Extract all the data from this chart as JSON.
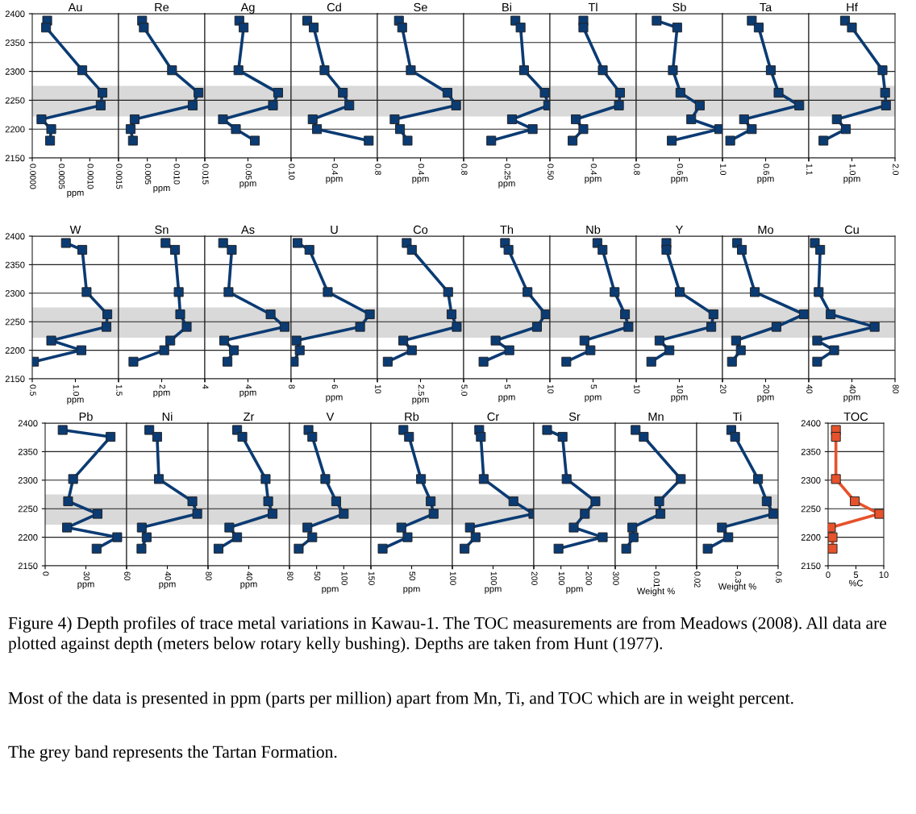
{
  "chart_data": [
    {
      "type": "line",
      "title": "Au",
      "xlabel": "ppm",
      "xlim": [
        0,
        0.0015
      ],
      "xticks": [
        {
          "value": 0,
          "label": "0.0000"
        },
        0.0005,
        {
          "value": 0.001,
          "label": "0.0010"
        },
        {
          "value": 0.0015,
          "label": "0.0015"
        }
      ],
      "ylim": [
        2150,
        2400
      ],
      "yticks": [
        2150,
        2200,
        2250,
        2300,
        2350,
        2400
      ],
      "grid": "y",
      "marker": "square",
      "bands": [
        {
          "axis": "y",
          "from": 2222,
          "to": 2275,
          "color": "#d9d9d9"
        }
      ],
      "series": [
        {
          "color": "#0b3b73",
          "x": [
            0.00026,
            0.00024,
            0.00087,
            0.00122,
            0.00119,
            0.00016,
            0.00033,
            0.00031
          ],
          "values": [
            2388,
            2376,
            2302,
            2263,
            2241,
            2217,
            2200,
            2180
          ]
        }
      ]
    },
    {
      "type": "line",
      "title": "Re",
      "xlabel": "ppm",
      "xlim": [
        0,
        0.015
      ],
      "xticks": [
        {
          "value": 0,
          "label": null
        },
        0.005,
        {
          "value": 0.01,
          "label": "0.010"
        },
        0.015
      ],
      "ylim": [
        2150,
        2400
      ],
      "yticks": [
        2150,
        2200,
        2250,
        2300,
        2350,
        2400
      ],
      "grid": "y",
      "marker": "square",
      "tick_labels": "x",
      "bands": [
        {
          "axis": "y",
          "from": 2222,
          "to": 2275,
          "color": "#d9d9d9"
        }
      ],
      "series": [
        {
          "color": "#0b3b73",
          "x": [
            0.0041,
            0.0044,
            0.0093,
            0.0139,
            0.0129,
            0.0028,
            0.0021,
            0.0025
          ],
          "values": [
            2388,
            2376,
            2302,
            2263,
            2241,
            2217,
            2200,
            2180
          ]
        }
      ]
    },
    {
      "type": "line",
      "title": "Ag",
      "xlabel": "ppm",
      "xlim": [
        0,
        0.1
      ],
      "xticks": [
        {
          "value": 0,
          "label": null
        },
        0.05,
        {
          "value": 0.1,
          "label": "0.10"
        }
      ],
      "ylim": [
        2150,
        2400
      ],
      "yticks": [
        2150,
        2200,
        2250,
        2300,
        2350,
        2400
      ],
      "grid": "y",
      "marker": "square",
      "tick_labels": "x",
      "bands": [
        {
          "axis": "y",
          "from": 2222,
          "to": 2275,
          "color": "#d9d9d9"
        }
      ],
      "series": [
        {
          "color": "#0b3b73",
          "x": [
            0.04,
            0.045,
            0.039,
            0.085,
            0.079,
            0.021,
            0.036,
            0.058
          ],
          "values": [
            2388,
            2376,
            2302,
            2263,
            2241,
            2217,
            2200,
            2180
          ]
        }
      ]
    },
    {
      "type": "line",
      "title": "Cd",
      "xlabel": "ppm",
      "xlim": [
        0,
        0.8
      ],
      "xticks": [
        {
          "value": 0,
          "label": null
        },
        0.4,
        0.8
      ],
      "ylim": [
        2150,
        2400
      ],
      "yticks": [
        2150,
        2200,
        2250,
        2300,
        2350,
        2400
      ],
      "grid": "y",
      "marker": "square",
      "tick_labels": "x",
      "bands": [
        {
          "axis": "y",
          "from": 2222,
          "to": 2275,
          "color": "#d9d9d9"
        }
      ],
      "series": [
        {
          "color": "#0b3b73",
          "x": [
            0.15,
            0.21,
            0.31,
            0.48,
            0.54,
            0.2,
            0.24,
            0.72
          ],
          "values": [
            2388,
            2376,
            2302,
            2263,
            2241,
            2217,
            2200,
            2180
          ]
        }
      ]
    },
    {
      "type": "line",
      "title": "Se",
      "xlabel": "ppm",
      "xlim": [
        0,
        0.8
      ],
      "xticks": [
        {
          "value": 0,
          "label": null
        },
        0.4,
        0.8
      ],
      "ylim": [
        2150,
        2400
      ],
      "yticks": [
        2150,
        2200,
        2250,
        2300,
        2350,
        2400
      ],
      "grid": "y",
      "marker": "square",
      "tick_labels": "x",
      "bands": [
        {
          "axis": "y",
          "from": 2222,
          "to": 2275,
          "color": "#d9d9d9"
        }
      ],
      "series": [
        {
          "color": "#0b3b73",
          "x": [
            0.2,
            0.23,
            0.31,
            0.65,
            0.73,
            0.16,
            0.21,
            0.28
          ],
          "values": [
            2388,
            2376,
            2302,
            2263,
            2241,
            2217,
            2200,
            2180
          ]
        }
      ]
    },
    {
      "type": "line",
      "title": "Bi",
      "xlabel": "ppm",
      "xlim": [
        0,
        0.5
      ],
      "xticks": [
        {
          "value": 0,
          "label": null
        },
        0.25,
        {
          "value": 0.5,
          "label": "0.50"
        }
      ],
      "ylim": [
        2150,
        2400
      ],
      "yticks": [
        2150,
        2200,
        2250,
        2300,
        2350,
        2400
      ],
      "grid": "y",
      "marker": "square",
      "tick_labels": "x",
      "bands": [
        {
          "axis": "y",
          "from": 2222,
          "to": 2275,
          "color": "#d9d9d9"
        }
      ],
      "series": [
        {
          "color": "#0b3b73",
          "x": [
            0.3,
            0.33,
            0.35,
            0.47,
            0.49,
            0.28,
            0.4,
            0.16
          ],
          "values": [
            2388,
            2376,
            2302,
            2263,
            2241,
            2217,
            2200,
            2180
          ]
        }
      ]
    },
    {
      "type": "line",
      "title": "Tl",
      "xlabel": "ppm",
      "xlim": [
        0,
        0.8
      ],
      "xticks": [
        {
          "value": 0,
          "label": null
        },
        0.4,
        0.8
      ],
      "ylim": [
        2150,
        2400
      ],
      "yticks": [
        2150,
        2200,
        2250,
        2300,
        2350,
        2400
      ],
      "grid": "y",
      "marker": "square",
      "tick_labels": "x",
      "bands": [
        {
          "axis": "y",
          "from": 2222,
          "to": 2275,
          "color": "#d9d9d9"
        }
      ],
      "series": [
        {
          "color": "#0b3b73",
          "x": [
            0.31,
            0.31,
            0.49,
            0.65,
            0.64,
            0.24,
            0.31,
            0.21
          ],
          "values": [
            2388,
            2376,
            2302,
            2263,
            2241,
            2217,
            2200,
            2180
          ]
        }
      ]
    },
    {
      "type": "line",
      "title": "Sb",
      "xlabel": "ppm",
      "xlim": [
        0.2,
        1.0
      ],
      "xticks": [
        {
          "value": 0.2,
          "label": null
        },
        0.6,
        {
          "value": 1.0,
          "label": "1.0"
        }
      ],
      "ylim": [
        2150,
        2400
      ],
      "yticks": [
        2150,
        2200,
        2250,
        2300,
        2350,
        2400
      ],
      "grid": "y",
      "marker": "square",
      "tick_labels": "x",
      "bands": [
        {
          "axis": "y",
          "from": 2222,
          "to": 2275,
          "color": "#d9d9d9"
        }
      ],
      "series": [
        {
          "color": "#0b3b73",
          "x": [
            0.39,
            0.58,
            0.54,
            0.61,
            0.79,
            0.71,
            0.97,
            0.53
          ],
          "values": [
            2388,
            2376,
            2302,
            2263,
            2241,
            2217,
            2200,
            2180
          ]
        }
      ]
    },
    {
      "type": "line",
      "title": "Ta",
      "xlabel": "ppm",
      "xlim": [
        0.1,
        1.1
      ],
      "xticks": [
        {
          "value": 0.1,
          "label": null
        },
        0.6,
        1.1
      ],
      "ylim": [
        2150,
        2400
      ],
      "yticks": [
        2150,
        2200,
        2250,
        2300,
        2350,
        2400
      ],
      "grid": "y",
      "marker": "square",
      "tick_labels": "x",
      "bands": [
        {
          "axis": "y",
          "from": 2222,
          "to": 2275,
          "color": "#d9d9d9"
        }
      ],
      "series": [
        {
          "color": "#0b3b73",
          "x": [
            0.44,
            0.52,
            0.66,
            0.75,
            0.99,
            0.35,
            0.44,
            0.19
          ],
          "values": [
            2388,
            2376,
            2302,
            2263,
            2241,
            2217,
            2200,
            2180
          ]
        }
      ]
    },
    {
      "type": "line",
      "title": "Hf",
      "xlabel": "ppm",
      "xlim": [
        0,
        2.0
      ],
      "xticks": [
        {
          "value": 0,
          "label": null
        },
        {
          "value": 1.0,
          "label": "1.0"
        },
        {
          "value": 2.0,
          "label": "2.0"
        }
      ],
      "ylim": [
        2150,
        2400
      ],
      "yticks": [
        2150,
        2200,
        2250,
        2300,
        2350,
        2400
      ],
      "grid": "y",
      "marker": "square",
      "tick_labels": "x",
      "bands": [
        {
          "axis": "y",
          "from": 2222,
          "to": 2275,
          "color": "#d9d9d9"
        }
      ],
      "series": [
        {
          "color": "#0b3b73",
          "x": [
            0.84,
            1.0,
            1.71,
            1.77,
            1.79,
            0.65,
            0.86,
            0.34
          ],
          "values": [
            2388,
            2376,
            2302,
            2263,
            2241,
            2217,
            2200,
            2180
          ]
        }
      ]
    },
    {
      "type": "line",
      "title": "W",
      "xlabel": "ppm",
      "xlim": [
        0.5,
        1.5
      ],
      "xticks": [
        0.5,
        {
          "value": 1.0,
          "label": "1.0"
        },
        1.5
      ],
      "ylim": [
        2150,
        2400
      ],
      "yticks": [
        2150,
        2200,
        2250,
        2300,
        2350,
        2400
      ],
      "grid": "y",
      "marker": "square",
      "bands": [
        {
          "axis": "y",
          "from": 2222,
          "to": 2275,
          "color": "#d9d9d9"
        }
      ],
      "series": [
        {
          "color": "#0b3b73",
          "x": [
            0.89,
            1.08,
            1.13,
            1.37,
            1.36,
            0.72,
            1.07,
            0.52
          ],
          "values": [
            2388,
            2376,
            2302,
            2263,
            2241,
            2217,
            2200,
            2180
          ]
        }
      ]
    },
    {
      "type": "line",
      "title": "Sn",
      "xlabel": "ppm",
      "xlim": [
        0,
        4
      ],
      "xticks": [
        {
          "value": 0,
          "label": null
        },
        2,
        4
      ],
      "ylim": [
        2150,
        2400
      ],
      "yticks": [
        2150,
        2200,
        2250,
        2300,
        2350,
        2400
      ],
      "grid": "y",
      "marker": "square",
      "tick_labels": "x",
      "bands": [
        {
          "axis": "y",
          "from": 2222,
          "to": 2275,
          "color": "#d9d9d9"
        }
      ],
      "series": [
        {
          "color": "#0b3b73",
          "x": [
            2.18,
            2.62,
            2.79,
            2.86,
            3.16,
            2.4,
            2.12,
            0.69
          ],
          "values": [
            2388,
            2376,
            2302,
            2263,
            2241,
            2217,
            2200,
            2180
          ]
        }
      ]
    },
    {
      "type": "line",
      "title": "As",
      "xlabel": "ppm",
      "xlim": [
        0,
        8
      ],
      "xticks": [
        {
          "value": 0,
          "label": null
        },
        4,
        8
      ],
      "ylim": [
        2150,
        2400
      ],
      "yticks": [
        2150,
        2200,
        2250,
        2300,
        2350,
        2400
      ],
      "grid": "y",
      "marker": "square",
      "tick_labels": "x",
      "bands": [
        {
          "axis": "y",
          "from": 2222,
          "to": 2275,
          "color": "#d9d9d9"
        }
      ],
      "series": [
        {
          "color": "#0b3b73",
          "x": [
            1.7,
            2.5,
            2.2,
            6.1,
            7.4,
            1.8,
            2.7,
            2.1
          ],
          "values": [
            2388,
            2376,
            2302,
            2263,
            2241,
            2217,
            2200,
            2180
          ]
        }
      ]
    },
    {
      "type": "line",
      "title": "U",
      "xlabel": "ppm",
      "xlim": [
        2,
        10
      ],
      "xticks": [
        {
          "value": 2,
          "label": null
        },
        6,
        10
      ],
      "ylim": [
        2150,
        2400
      ],
      "yticks": [
        2150,
        2200,
        2250,
        2300,
        2350,
        2400
      ],
      "grid": "y",
      "marker": "square",
      "tick_labels": "x",
      "bands": [
        {
          "axis": "y",
          "from": 2222,
          "to": 2275,
          "color": "#d9d9d9"
        }
      ],
      "series": [
        {
          "color": "#0b3b73",
          "x": [
            2.6,
            3.7,
            5.4,
            9.3,
            8.4,
            2.5,
            2.8,
            2.25
          ],
          "values": [
            2388,
            2376,
            2302,
            2263,
            2241,
            2217,
            2200,
            2180
          ]
        }
      ]
    },
    {
      "type": "line",
      "title": "Co",
      "xlabel": "ppm",
      "xlim": [
        0,
        5.0
      ],
      "xticks": [
        {
          "value": 0,
          "label": null
        },
        2.5,
        {
          "value": 5.0,
          "label": "5.0"
        }
      ],
      "ylim": [
        2150,
        2400
      ],
      "yticks": [
        2150,
        2200,
        2250,
        2300,
        2350,
        2400
      ],
      "grid": "y",
      "marker": "square",
      "tick_labels": "x",
      "bands": [
        {
          "axis": "y",
          "from": 2222,
          "to": 2275,
          "color": "#d9d9d9"
        }
      ],
      "series": [
        {
          "color": "#0b3b73",
          "x": [
            1.7,
            2.0,
            4.1,
            4.3,
            4.6,
            1.5,
            2.0,
            0.6
          ],
          "values": [
            2388,
            2376,
            2302,
            2263,
            2241,
            2217,
            2200,
            2180
          ]
        }
      ]
    },
    {
      "type": "line",
      "title": "Th",
      "xlabel": "ppm",
      "xlim": [
        0,
        10
      ],
      "xticks": [
        {
          "value": 0,
          "label": null
        },
        5,
        10
      ],
      "ylim": [
        2150,
        2400
      ],
      "yticks": [
        2150,
        2200,
        2250,
        2300,
        2350,
        2400
      ],
      "grid": "y",
      "marker": "square",
      "tick_labels": "x",
      "bands": [
        {
          "axis": "y",
          "from": 2222,
          "to": 2275,
          "color": "#d9d9d9"
        }
      ],
      "series": [
        {
          "color": "#0b3b73",
          "x": [
            4.8,
            5.2,
            7.4,
            9.5,
            8.5,
            3.7,
            5.3,
            2.3
          ],
          "values": [
            2388,
            2376,
            2302,
            2263,
            2241,
            2217,
            2200,
            2180
          ]
        }
      ]
    },
    {
      "type": "line",
      "title": "Nb",
      "xlabel": "ppm",
      "xlim": [
        0,
        10
      ],
      "xticks": [
        {
          "value": 0,
          "label": null
        },
        5,
        10
      ],
      "ylim": [
        2150,
        2400
      ],
      "yticks": [
        2150,
        2200,
        2250,
        2300,
        2350,
        2400
      ],
      "grid": "y",
      "marker": "square",
      "tick_labels": "x",
      "bands": [
        {
          "axis": "y",
          "from": 2222,
          "to": 2275,
          "color": "#d9d9d9"
        }
      ],
      "series": [
        {
          "color": "#0b3b73",
          "x": [
            5.5,
            6.1,
            7.5,
            8.7,
            9.1,
            4.0,
            4.7,
            1.9
          ],
          "values": [
            2388,
            2376,
            2302,
            2263,
            2241,
            2217,
            2200,
            2180
          ]
        }
      ]
    },
    {
      "type": "line",
      "title": "Y",
      "xlabel": "ppm",
      "xlim": [
        0,
        20
      ],
      "xticks": [
        {
          "value": 0,
          "label": null
        },
        10,
        20
      ],
      "ylim": [
        2150,
        2400
      ],
      "yticks": [
        2150,
        2200,
        2250,
        2300,
        2350,
        2400
      ],
      "grid": "y",
      "marker": "square",
      "tick_labels": "x",
      "bands": [
        {
          "axis": "y",
          "from": 2222,
          "to": 2275,
          "color": "#d9d9d9"
        }
      ],
      "series": [
        {
          "color": "#0b3b73",
          "x": [
            7.0,
            7.0,
            10.1,
            17.9,
            17.4,
            5.4,
            7.7,
            3.5
          ],
          "values": [
            2388,
            2376,
            2302,
            2263,
            2241,
            2217,
            2200,
            2180
          ]
        }
      ]
    },
    {
      "type": "line",
      "title": "Mo",
      "xlabel": "ppm",
      "xlim": [
        0,
        40
      ],
      "xticks": [
        {
          "value": 0,
          "label": null
        },
        20,
        40
      ],
      "ylim": [
        2150,
        2400
      ],
      "yticks": [
        2150,
        2200,
        2250,
        2300,
        2350,
        2400
      ],
      "grid": "y",
      "marker": "square",
      "tick_labels": "x",
      "bands": [
        {
          "axis": "y",
          "from": 2222,
          "to": 2275,
          "color": "#d9d9d9"
        }
      ],
      "series": [
        {
          "color": "#0b3b73",
          "x": [
            6.8,
            9.0,
            15.0,
            37.8,
            25.0,
            6.3,
            8.5,
            4.4
          ],
          "values": [
            2388,
            2376,
            2302,
            2263,
            2241,
            2217,
            2200,
            2180
          ]
        }
      ]
    },
    {
      "type": "line",
      "title": "Cu",
      "xlabel": "ppm",
      "xlim": [
        0,
        80
      ],
      "xticks": [
        {
          "value": 0,
          "label": null
        },
        40,
        80
      ],
      "ylim": [
        2150,
        2400
      ],
      "yticks": [
        2150,
        2200,
        2250,
        2300,
        2350,
        2400
      ],
      "grid": "y",
      "marker": "square",
      "tick_labels": "x",
      "bands": [
        {
          "axis": "y",
          "from": 2222,
          "to": 2275,
          "color": "#d9d9d9"
        }
      ],
      "series": [
        {
          "color": "#0b3b73",
          "x": [
            5.6,
            10.6,
            9.2,
            20.3,
            61.1,
            7.8,
            23.6,
            7.8
          ],
          "values": [
            2388,
            2376,
            2302,
            2263,
            2241,
            2217,
            2200,
            2180
          ]
        }
      ]
    },
    {
      "type": "line",
      "title": "Pb",
      "xlabel": "ppm",
      "xlim": [
        0,
        60
      ],
      "xticks": [
        0,
        30,
        60
      ],
      "ylim": [
        2150,
        2400
      ],
      "yticks": [
        2150,
        2200,
        2250,
        2300,
        2350,
        2400
      ],
      "grid": "y",
      "marker": "square",
      "bands": [
        {
          "axis": "y",
          "from": 2222,
          "to": 2275,
          "color": "#d9d9d9"
        }
      ],
      "series": [
        {
          "color": "#0b3b73",
          "x": [
            12.9,
            48.2,
            20.6,
            16.9,
            38.6,
            16.1,
            53.1,
            37.9
          ],
          "values": [
            2388,
            2376,
            2302,
            2263,
            2241,
            2217,
            2200,
            2180
          ]
        }
      ]
    },
    {
      "type": "line",
      "title": "Ni",
      "xlabel": "ppm",
      "xlim": [
        0,
        80
      ],
      "xticks": [
        {
          "value": 0,
          "label": null
        },
        40,
        80
      ],
      "ylim": [
        2150,
        2400
      ],
      "yticks": [
        2150,
        2200,
        2250,
        2300,
        2350,
        2400
      ],
      "grid": "y",
      "marker": "square",
      "tick_labels": "x",
      "bands": [
        {
          "axis": "y",
          "from": 2222,
          "to": 2275,
          "color": "#d9d9d9"
        }
      ],
      "series": [
        {
          "color": "#0b3b73",
          "x": [
            22.3,
            30.0,
            31.7,
            64.6,
            69.4,
            14.9,
            19.7,
            14.6
          ],
          "values": [
            2388,
            2376,
            2302,
            2263,
            2241,
            2217,
            2200,
            2180
          ]
        }
      ]
    },
    {
      "type": "line",
      "title": "Zr",
      "xlabel": "ppm",
      "xlim": [
        0,
        80
      ],
      "xticks": [
        {
          "value": 0,
          "label": null
        },
        40,
        80
      ],
      "ylim": [
        2150,
        2400
      ],
      "yticks": [
        2150,
        2200,
        2250,
        2300,
        2350,
        2400
      ],
      "grid": "y",
      "marker": "square",
      "tick_labels": "x",
      "bands": [
        {
          "axis": "y",
          "from": 2222,
          "to": 2275,
          "color": "#d9d9d9"
        }
      ],
      "series": [
        {
          "color": "#0b3b73",
          "x": [
            28.6,
            33.7,
            56.6,
            59.1,
            63.4,
            20.9,
            28.6,
            10.3
          ],
          "values": [
            2388,
            2376,
            2302,
            2263,
            2241,
            2217,
            2200,
            2180
          ]
        }
      ]
    },
    {
      "type": "line",
      "title": "V",
      "xlabel": "ppm",
      "xlim": [
        0,
        150
      ],
      "xticks": [
        {
          "value": 0,
          "label": null
        },
        50,
        100,
        150
      ],
      "ylim": [
        2150,
        2400
      ],
      "yticks": [
        2150,
        2200,
        2250,
        2300,
        2350,
        2400
      ],
      "grid": "y",
      "marker": "square",
      "tick_labels": "x",
      "bands": [
        {
          "axis": "y",
          "from": 2222,
          "to": 2275,
          "color": "#d9d9d9"
        }
      ],
      "series": [
        {
          "color": "#0b3b73",
          "x": [
            35,
            42,
            66,
            86,
            100,
            33,
            42,
            17
          ],
          "values": [
            2388,
            2376,
            2302,
            2263,
            2241,
            2217,
            2200,
            2180
          ]
        }
      ]
    },
    {
      "type": "line",
      "title": "Rb",
      "xlabel": "ppm",
      "xlim": [
        0,
        100
      ],
      "xticks": [
        {
          "value": 0,
          "label": null
        },
        50,
        100
      ],
      "ylim": [
        2150,
        2400
      ],
      "yticks": [
        2150,
        2200,
        2250,
        2300,
        2350,
        2400
      ],
      "grid": "y",
      "marker": "square",
      "tick_labels": "x",
      "bands": [
        {
          "axis": "y",
          "from": 2222,
          "to": 2275,
          "color": "#d9d9d9"
        }
      ],
      "series": [
        {
          "color": "#0b3b73",
          "x": [
            39.9,
            46.8,
            61.5,
            73.4,
            77.0,
            37.4,
            45.0,
            14.4
          ],
          "values": [
            2388,
            2376,
            2302,
            2263,
            2241,
            2217,
            2200,
            2180
          ]
        }
      ]
    },
    {
      "type": "line",
      "title": "Cr",
      "xlabel": "ppm",
      "xlim": [
        0,
        200
      ],
      "xticks": [
        {
          "value": 0,
          "label": null
        },
        100,
        200
      ],
      "ylim": [
        2150,
        2400
      ],
      "yticks": [
        2150,
        2200,
        2250,
        2300,
        2350,
        2400
      ],
      "grid": "y",
      "marker": "square",
      "tick_labels": "x",
      "bands": [
        {
          "axis": "y",
          "from": 2222,
          "to": 2275,
          "color": "#d9d9d9"
        }
      ],
      "series": [
        {
          "color": "#0b3b73",
          "x": [
            66,
            70,
            77,
            150,
            199,
            43,
            57,
            30
          ],
          "values": [
            2388,
            2376,
            2302,
            2263,
            2241,
            2217,
            2200,
            2180
          ]
        }
      ]
    },
    {
      "type": "line",
      "title": "Sr",
      "xlabel": "ppm",
      "xlim": [
        0,
        300
      ],
      "xticks": [
        {
          "value": 0,
          "label": null
        },
        100,
        200,
        300
      ],
      "ylim": [
        2150,
        2400
      ],
      "yticks": [
        2150,
        2200,
        2250,
        2300,
        2350,
        2400
      ],
      "grid": "y",
      "marker": "square",
      "tick_labels": "x",
      "bands": [
        {
          "axis": "y",
          "from": 2222,
          "to": 2275,
          "color": "#d9d9d9"
        }
      ],
      "series": [
        {
          "color": "#0b3b73",
          "x": [
            49,
            106,
            121,
            227,
            188,
            147,
            254,
            91
          ],
          "values": [
            2388,
            2376,
            2302,
            2263,
            2241,
            2217,
            2200,
            2180
          ]
        }
      ]
    },
    {
      "type": "line",
      "title": "Mn",
      "xlabel": "Weight %",
      "xlim": [
        0,
        0.02
      ],
      "xticks": [
        {
          "value": 0,
          "label": null
        },
        0.01,
        0.02
      ],
      "ylim": [
        2150,
        2400
      ],
      "yticks": [
        2150,
        2200,
        2250,
        2300,
        2350,
        2400
      ],
      "grid": "y",
      "marker": "square",
      "tick_labels": "x",
      "bands": [
        {
          "axis": "y",
          "from": 2222,
          "to": 2275,
          "color": "#d9d9d9"
        }
      ],
      "series": [
        {
          "color": "#0b3b73",
          "x": [
            0.005,
            0.007,
            0.0161,
            0.0108,
            0.0111,
            0.0042,
            0.0045,
            0.0027
          ],
          "values": [
            2388,
            2376,
            2302,
            2263,
            2241,
            2217,
            2200,
            2180
          ]
        }
      ]
    },
    {
      "type": "line",
      "title": "Ti",
      "xlabel": "Weight %",
      "xlim": [
        0,
        0.6
      ],
      "xticks": [
        {
          "value": 0,
          "label": null
        },
        0.3,
        0.6
      ],
      "ylim": [
        2150,
        2400
      ],
      "yticks": [
        2150,
        2200,
        2250,
        2300,
        2350,
        2400
      ],
      "grid": "y",
      "marker": "square",
      "tick_labels": "x",
      "bands": [
        {
          "axis": "y",
          "from": 2222,
          "to": 2275,
          "color": "#d9d9d9"
        }
      ],
      "series": [
        {
          "color": "#0b3b73",
          "x": [
            0.255,
            0.283,
            0.452,
            0.516,
            0.565,
            0.186,
            0.233,
            0.081
          ],
          "values": [
            2388,
            2376,
            2302,
            2263,
            2241,
            2217,
            2200,
            2180
          ]
        }
      ]
    },
    {
      "type": "line",
      "title": "TOC",
      "xlabel": "%C",
      "xlim": [
        0,
        10
      ],
      "xticks": [
        0,
        5,
        10
      ],
      "ylim": [
        2150,
        2400
      ],
      "yticks": [
        2150,
        2200,
        2250,
        2300,
        2350,
        2400
      ],
      "grid": "y",
      "marker": "square",
      "series": [
        {
          "color": "#e6522c",
          "x": [
            1.4,
            1.4,
            1.4,
            4.8,
            9.2,
            0.5,
            0.8,
            0.8
          ],
          "values": [
            2388,
            2376,
            2302,
            2263,
            2241,
            2217,
            2200,
            2180
          ]
        }
      ],
      "annotations": [
        "Figure 4) Depth profiles of trace metal variations in Kawau-1. The TOC measurements are from Meadows (2008). All data are plotted against depth (meters below rotary kelly bushing). Depths are taken from Hunt (1977).",
        "Most of the data is presented in ppm (parts per million) apart from Mn, Ti, and TOC which are in weight percent.",
        "The grey band represents the Tartan Formation."
      ]
    }
  ]
}
